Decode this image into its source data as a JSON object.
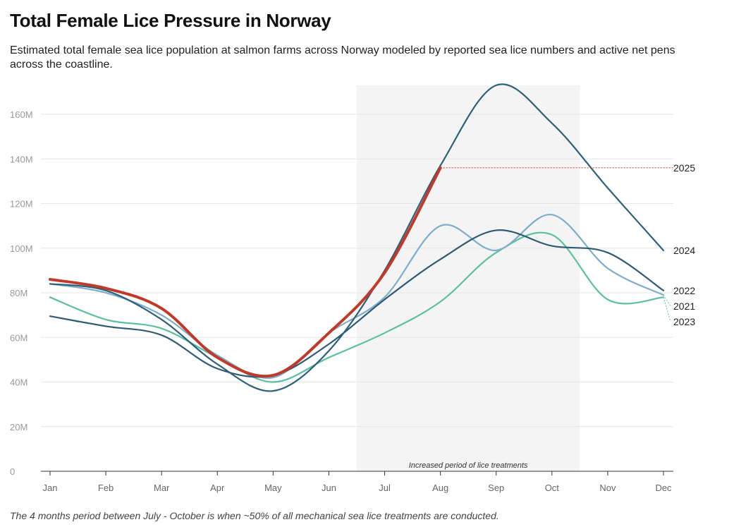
{
  "chart_data": {
    "type": "line",
    "title": "Total Female Lice Pressure in Norway",
    "subtitle": "Estimated total female sea lice population at salmon farms across Norway modeled by reported sea lice numbers and active net pens across the coastline.",
    "annotation": "Increased period of lice treatments",
    "note": "The 4 months period between July - October is when ~50% of all mechanical sea lice treatments are conducted.",
    "categories": [
      "Jan",
      "Feb",
      "Mar",
      "Apr",
      "May",
      "Jun",
      "Jul",
      "Aug",
      "Sep",
      "Oct",
      "Nov",
      "Dec"
    ],
    "ylim": [
      0,
      175000000
    ],
    "yticks": [
      0,
      {
        "value": 20000000,
        "label": "20M"
      },
      {
        "value": 40000000,
        "label": "40M"
      },
      {
        "value": 60000000,
        "label": "60M"
      },
      {
        "value": 80000000,
        "label": "80M"
      },
      {
        "value": 100000000,
        "label": "100M"
      },
      {
        "value": 120000000,
        "label": "120M"
      },
      {
        "value": 140000000,
        "label": "140M"
      },
      {
        "value": 160000000,
        "label": "160M"
      }
    ],
    "grid": true,
    "series": [
      {
        "name": "2023",
        "color": "#5cbfa2",
        "values": [
          78000000,
          68000000,
          64000000,
          51000000,
          40000000,
          51000000,
          62000000,
          76000000,
          98000000,
          106000000,
          77000000,
          78000000
        ]
      },
      {
        "name": "2021",
        "color": "#7eadc9",
        "values": [
          84000000,
          80000000,
          70000000,
          52000000,
          42000000,
          62000000,
          78000000,
          110000000,
          99000000,
          115000000,
          91000000,
          79000000
        ]
      },
      {
        "name": "2022",
        "color": "#2f5b75",
        "values": [
          69500000,
          65000000,
          61000000,
          46000000,
          43000000,
          57000000,
          77000000,
          95000000,
          108000000,
          101000000,
          98000000,
          81000000
        ]
      },
      {
        "name": "2024",
        "color": "#2d6079",
        "values": [
          84000000,
          81000000,
          68000000,
          48000000,
          36000000,
          54000000,
          90000000,
          137000000,
          173000000,
          156000000,
          127000000,
          99000000
        ]
      },
      {
        "name": "2025",
        "color": "#c0392b",
        "values": [
          86000000,
          82000000,
          73000000,
          51000000,
          43000000,
          62000000,
          89000000,
          136000000,
          null,
          null,
          null,
          null
        ]
      }
    ]
  }
}
